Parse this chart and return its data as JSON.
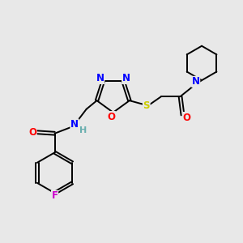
{
  "bg_color": "#e8e8e8",
  "bond_color": "#000000",
  "atom_colors": {
    "N": "#0000ff",
    "O": "#ff0000",
    "S": "#cccc00",
    "F": "#cc00cc",
    "H": "#6aafaf",
    "C": "#000000"
  },
  "font_size": 8.5,
  "bond_width": 1.4
}
